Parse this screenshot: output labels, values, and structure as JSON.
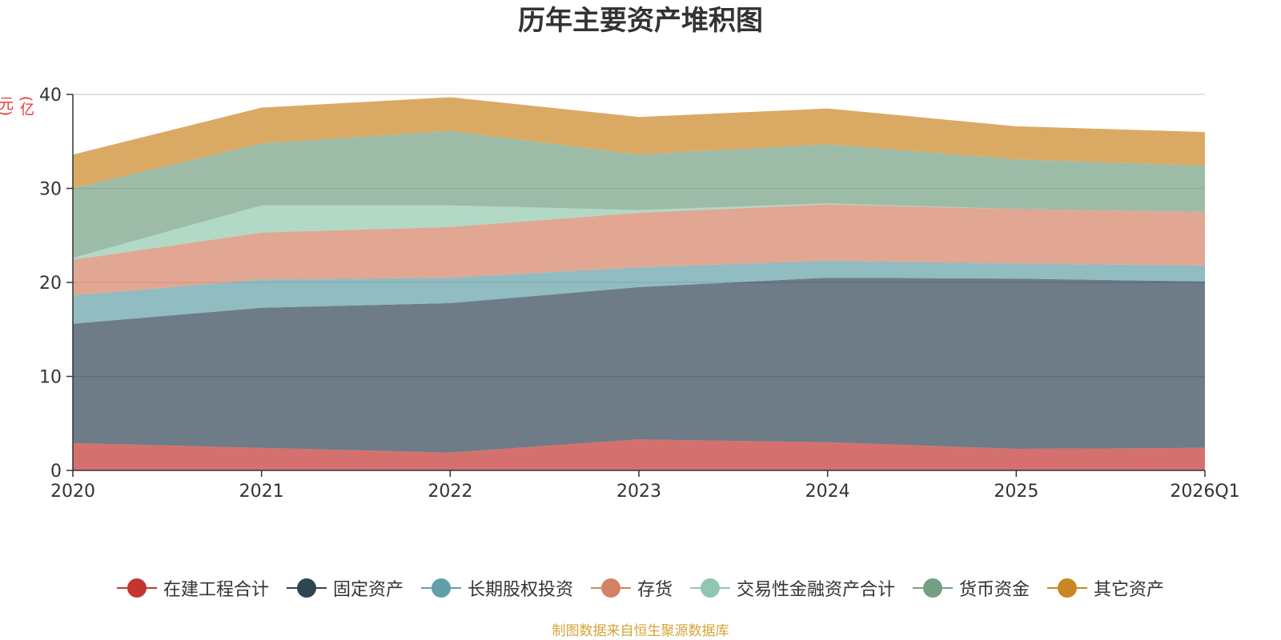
{
  "chart_data": {
    "type": "area",
    "stacked": true,
    "title": "历年主要资产堆积图",
    "ylabel": "(亿元)",
    "xlabel": "",
    "categories": [
      "2020",
      "2021",
      "2022",
      "2023",
      "2024",
      "2025",
      "2026Q1"
    ],
    "ylim": [
      0,
      40
    ],
    "yticks": [
      0,
      10,
      20,
      30,
      40
    ],
    "grid": true,
    "legend_position": "bottom",
    "series": [
      {
        "name": "在建工程合计",
        "color": "#c23531",
        "values": [
          2.9,
          2.4,
          1.9,
          3.3,
          3.0,
          2.3,
          2.4
        ]
      },
      {
        "name": "固定资产",
        "color": "#2f4554",
        "values": [
          12.7,
          14.9,
          15.9,
          16.2,
          17.5,
          18.1,
          17.7
        ]
      },
      {
        "name": "长期股权投资",
        "color": "#61a0a8",
        "values": [
          3.0,
          3.0,
          2.7,
          2.1,
          1.8,
          1.6,
          1.7
        ]
      },
      {
        "name": "存货",
        "color": "#d48265",
        "values": [
          3.8,
          5.0,
          5.4,
          5.8,
          6.0,
          5.8,
          5.7
        ]
      },
      {
        "name": "交易性金融资产合计",
        "color": "#91c7ae",
        "values": [
          0.2,
          2.9,
          2.3,
          0.3,
          0.1,
          0.0,
          0.0
        ]
      },
      {
        "name": "货币资金",
        "color": "#749f83",
        "values": [
          7.4,
          6.6,
          7.9,
          5.9,
          6.3,
          5.3,
          4.9
        ]
      },
      {
        "name": "其它资产",
        "color": "#ca8622",
        "values": [
          3.6,
          3.8,
          3.6,
          4.0,
          3.8,
          3.5,
          3.6
        ]
      }
    ]
  },
  "source_note": "制图数据来自恒生聚源数据库"
}
